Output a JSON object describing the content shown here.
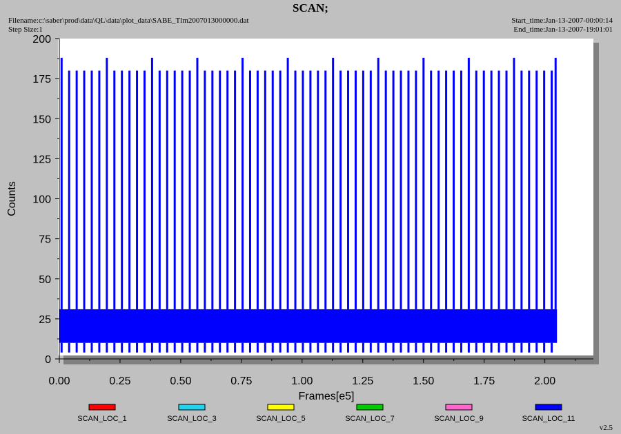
{
  "header": {
    "title": "SCAN;",
    "filename": "Filename:c:\\saber\\prod\\data\\QL\\data\\plot_data\\SABE_Tlm2007013000000.dat",
    "step_size": "Step Size:1",
    "start_time": "Start_time:Jan-13-2007-00:00:14",
    "end_time": "End_time:Jan-13-2007-19:01:01"
  },
  "version": "v2.5",
  "colors": {
    "background": "#c0c0c0",
    "plot_area": "#ffffff",
    "shadow": "#808080"
  },
  "chart_data": {
    "type": "line",
    "title": "SCAN;",
    "xlabel": "Frames[e5]",
    "ylabel": "Counts",
    "xlim": [
      0,
      2.2
    ],
    "ylim": [
      0,
      200
    ],
    "x_ticks": [
      0.0,
      0.25,
      0.5,
      0.75,
      1.0,
      1.25,
      1.5,
      1.75,
      2.0
    ],
    "x_tick_labels": [
      "0.00",
      "0.25",
      "0.50",
      "0.75",
      "1.00",
      "1.25",
      "1.50",
      "1.75",
      "2.00"
    ],
    "y_ticks": [
      0,
      25,
      50,
      75,
      100,
      125,
      150,
      175,
      200
    ],
    "y_tick_labels": [
      "0",
      "25",
      "50",
      "75",
      "100",
      "125",
      "150",
      "175",
      "200"
    ],
    "grid": false,
    "legend_position": "bottom",
    "scan_x_range": [
      0.0,
      2.05
    ],
    "scan_band": [
      10,
      31
    ],
    "scan_dip_level": 4,
    "scan_peak_levels": [
      180,
      188
    ],
    "scan_peak_count": 66,
    "series": [
      {
        "name": "SCAN_LOC_1",
        "color": "#ff0000"
      },
      {
        "name": "SCAN_LOC_3",
        "color": "#22d3ee"
      },
      {
        "name": "SCAN_LOC_5",
        "color": "#ffff00"
      },
      {
        "name": "SCAN_LOC_7",
        "color": "#00cc00"
      },
      {
        "name": "SCAN_LOC_9",
        "color": "#ff66cc"
      },
      {
        "name": "SCAN_LOC_11",
        "color": "#0000ff"
      }
    ]
  }
}
